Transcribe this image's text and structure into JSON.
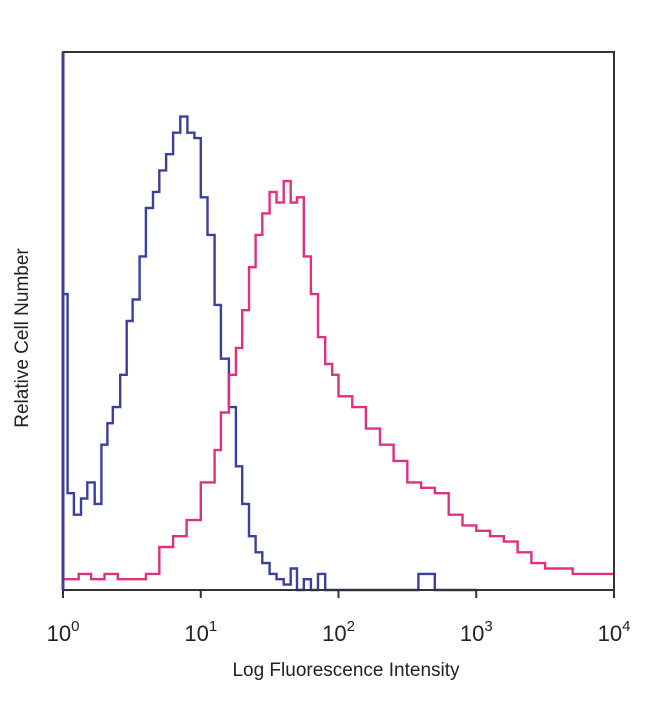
{
  "chart_data": {
    "type": "line",
    "title": "",
    "xlabel": "Log Fluorescence Intensity",
    "ylabel": "Relative Cell Number",
    "x_scale": "log",
    "xlim": [
      1,
      10000
    ],
    "ylim": [
      0,
      100
    ],
    "grid": false,
    "legend": "none",
    "x_ticks": [
      {
        "value": 1,
        "base": "10",
        "exp": "0"
      },
      {
        "value": 10,
        "base": "10",
        "exp": "1"
      },
      {
        "value": 100,
        "base": "10",
        "exp": "2"
      },
      {
        "value": 1000,
        "base": "10",
        "exp": "3"
      },
      {
        "value": 10000,
        "base": "10",
        "exp": "4"
      }
    ],
    "series": [
      {
        "color": "#3a3fa0",
        "x": [
          1.0,
          1.08,
          1.2,
          1.35,
          1.5,
          1.7,
          1.9,
          2.1,
          2.3,
          2.6,
          2.9,
          3.2,
          3.6,
          4.0,
          4.5,
          5.0,
          5.6,
          6.3,
          7.1,
          8.0,
          9.0,
          10,
          11.2,
          12.6,
          14,
          16,
          18,
          20,
          22.4,
          25,
          28,
          31.6,
          35.5,
          40,
          45,
          50,
          56,
          63,
          71,
          80,
          100,
          150,
          200,
          300,
          380,
          500,
          1000
        ],
        "y": [
          55,
          18,
          14,
          17,
          20,
          16,
          27,
          31,
          34,
          40,
          50,
          54,
          62,
          71,
          74,
          78,
          81,
          85,
          88,
          85,
          84,
          73,
          66,
          53,
          43,
          34,
          23,
          16,
          10,
          7,
          5,
          3,
          2,
          1,
          4,
          0,
          2,
          0,
          3,
          0,
          0,
          0,
          0,
          0,
          3,
          0,
          0
        ]
      },
      {
        "color": "#e0307e",
        "x": [
          1.0,
          1.3,
          1.6,
          2.0,
          2.5,
          3.2,
          4.0,
          5.0,
          6.3,
          7.9,
          10,
          12.6,
          14,
          16,
          18,
          20,
          22.4,
          25,
          28,
          31.6,
          35.5,
          40,
          45,
          50,
          56,
          63,
          71,
          80,
          90,
          100,
          126,
          158,
          200,
          251,
          316,
          398,
          501,
          631,
          794,
          1000,
          1259,
          1585,
          1995,
          2512,
          3162,
          3981,
          5012,
          6310,
          7943,
          10000
        ],
        "y": [
          2,
          3,
          2,
          3,
          2,
          2,
          3,
          8,
          10,
          13,
          20,
          26,
          33,
          40,
          45,
          52,
          60,
          66,
          70,
          74,
          72,
          76,
          72,
          73,
          62,
          55,
          47,
          42,
          40,
          36,
          34,
          30,
          27,
          24,
          20,
          19,
          18,
          14,
          12,
          11,
          10,
          9,
          7,
          5,
          4,
          4,
          3,
          3,
          3,
          3
        ]
      }
    ]
  }
}
